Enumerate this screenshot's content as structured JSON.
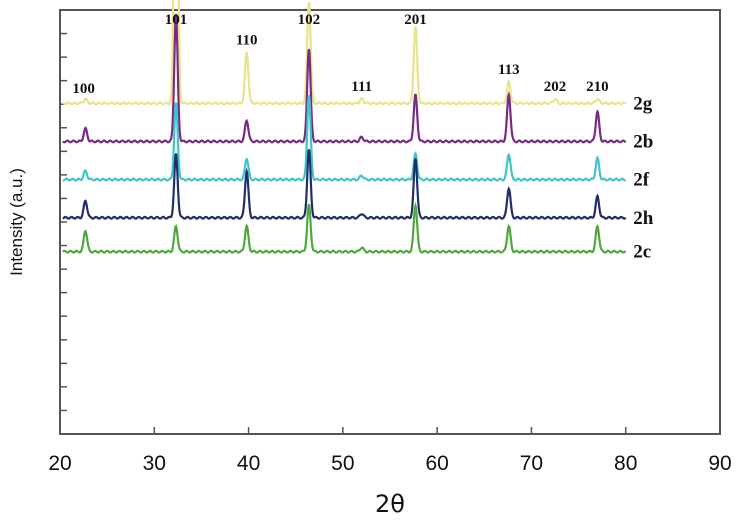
{
  "chart_data": {
    "type": "line",
    "xlabel": "2θ",
    "ylabel": "Intensity (a.u.)",
    "xlim": [
      20,
      90
    ],
    "xticks": [
      20,
      30,
      40,
      50,
      60,
      70,
      80,
      90
    ],
    "grid": false,
    "peak_labels": [
      {
        "text": "100",
        "x": 22.5
      },
      {
        "text": "101",
        "x": 32.3
      },
      {
        "text": "110",
        "x": 39.8
      },
      {
        "text": "102",
        "x": 46.4
      },
      {
        "text": "111",
        "x": 52.0
      },
      {
        "text": "201",
        "x": 57.7
      },
      {
        "text": "113",
        "x": 67.6
      },
      {
        "text": "202",
        "x": 72.5
      },
      {
        "text": "210",
        "x": 77.0
      }
    ],
    "series": [
      {
        "name": "2g",
        "color": "#e8e48a",
        "baseline": 0.78,
        "peaks": [
          [
            22.7,
            0.01
          ],
          [
            32.3,
            1.0
          ],
          [
            39.8,
            0.12
          ],
          [
            46.4,
            0.24
          ],
          [
            52.0,
            0.01
          ],
          [
            57.7,
            0.18
          ],
          [
            67.6,
            0.05
          ],
          [
            72.5,
            0.01
          ],
          [
            77.0,
            0.01
          ]
        ]
      },
      {
        "name": "2b",
        "color": "#7a2a86",
        "baseline": 0.69,
        "peaks": [
          [
            22.7,
            0.03
          ],
          [
            32.3,
            0.3
          ],
          [
            39.8,
            0.05
          ],
          [
            46.4,
            0.22
          ],
          [
            52.0,
            0.01
          ],
          [
            57.7,
            0.11
          ],
          [
            67.6,
            0.11
          ],
          [
            72.5,
            0.0
          ],
          [
            77.0,
            0.07
          ]
        ]
      },
      {
        "name": "2f",
        "color": "#3fc4c8",
        "baseline": 0.6,
        "peaks": [
          [
            22.7,
            0.02
          ],
          [
            32.3,
            0.18
          ],
          [
            39.8,
            0.05
          ],
          [
            46.4,
            0.2
          ],
          [
            52.0,
            0.01
          ],
          [
            57.7,
            0.06
          ],
          [
            67.6,
            0.06
          ],
          [
            72.5,
            0.0
          ],
          [
            77.0,
            0.05
          ]
        ]
      },
      {
        "name": "2h",
        "color": "#1e2f6a",
        "baseline": 0.51,
        "peaks": [
          [
            22.7,
            0.04
          ],
          [
            32.3,
            0.15
          ],
          [
            39.8,
            0.11
          ],
          [
            46.4,
            0.16
          ],
          [
            52.0,
            0.01
          ],
          [
            57.7,
            0.14
          ],
          [
            67.6,
            0.07
          ],
          [
            72.5,
            0.0
          ],
          [
            77.0,
            0.05
          ]
        ]
      },
      {
        "name": "2c",
        "color": "#4ea83c",
        "baseline": 0.43,
        "peaks": [
          [
            22.7,
            0.05
          ],
          [
            32.3,
            0.06
          ],
          [
            39.8,
            0.06
          ],
          [
            46.4,
            0.11
          ],
          [
            52.0,
            0.01
          ],
          [
            57.7,
            0.11
          ],
          [
            67.6,
            0.06
          ],
          [
            72.5,
            0.0
          ],
          [
            77.0,
            0.06
          ]
        ]
      }
    ]
  }
}
